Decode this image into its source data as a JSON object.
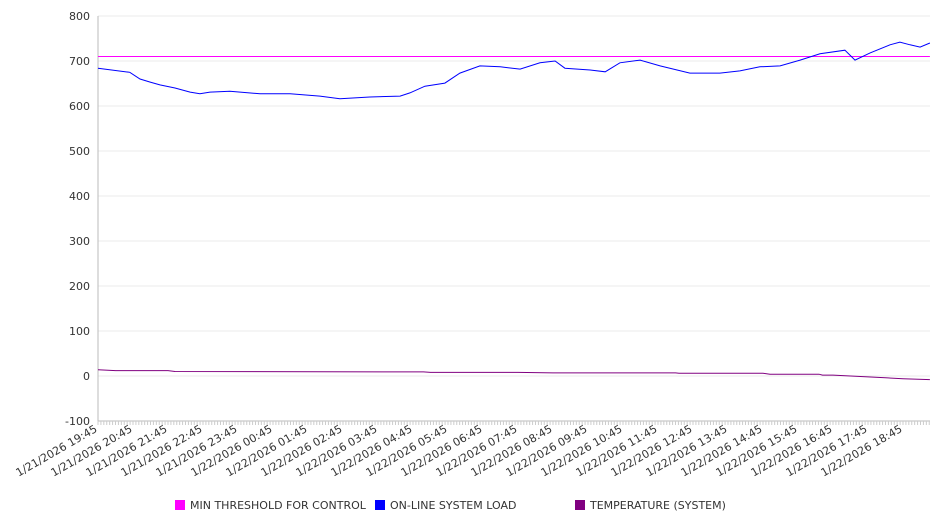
{
  "chart_data": {
    "type": "line",
    "title": "",
    "xlabel": "",
    "ylabel": "",
    "ylim": [
      -100,
      800
    ],
    "yticks": [
      800,
      700,
      600,
      500,
      400,
      300,
      200,
      100,
      0,
      -100
    ],
    "x_unit": "hours since 1/21/2026 19:45",
    "xlim": [
      0,
      23.77
    ],
    "xtick_labels": [
      "1/21/2026 19:45",
      "1/21/2026 20:45",
      "1/21/2026 21:45",
      "1/21/2026 22:45",
      "1/21/2026 23:45",
      "1/22/2026 00:45",
      "1/22/2026 01:45",
      "1/22/2026 02:45",
      "1/22/2026 03:45",
      "1/22/2026 04:45",
      "1/22/2026 05:45",
      "1/22/2026 06:45",
      "1/22/2026 07:45",
      "1/22/2026 08:45",
      "1/22/2026 09:45",
      "1/22/2026 10:45",
      "1/22/2026 11:45",
      "1/22/2026 12:45",
      "1/22/2026 13:45",
      "1/22/2026 14:45",
      "1/22/2026 15:45",
      "1/22/2026 16:45",
      "1/22/2026 17:45",
      "1/22/2026 18:45"
    ],
    "grid": true,
    "legend_position": "bottom",
    "series": [
      {
        "name": "MIN THRESHOLD FOR CONTROL",
        "color": "#ff00ff",
        "points": [
          [
            0,
            710
          ],
          [
            23.77,
            710
          ]
        ]
      },
      {
        "name": "ON-LINE SYSTEM LOAD",
        "color": "#0000ff",
        "points": [
          [
            0,
            684
          ],
          [
            0.91,
            675
          ],
          [
            1.2,
            660
          ],
          [
            1.49,
            653
          ],
          [
            1.77,
            647
          ],
          [
            2.2,
            640
          ],
          [
            2.63,
            631
          ],
          [
            2.91,
            627
          ],
          [
            3.2,
            631
          ],
          [
            3.77,
            633
          ],
          [
            4.63,
            627
          ],
          [
            5.49,
            627
          ],
          [
            6.34,
            622
          ],
          [
            6.91,
            616
          ],
          [
            7.77,
            620
          ],
          [
            8.63,
            622
          ],
          [
            8.91,
            629
          ],
          [
            9.34,
            644
          ],
          [
            9.91,
            651
          ],
          [
            10.34,
            673
          ],
          [
            10.91,
            689
          ],
          [
            11.49,
            687
          ],
          [
            12.06,
            682
          ],
          [
            12.63,
            696
          ],
          [
            13.06,
            700
          ],
          [
            13.34,
            684
          ],
          [
            14.06,
            680
          ],
          [
            14.49,
            676
          ],
          [
            14.91,
            696
          ],
          [
            15.49,
            702
          ],
          [
            16.06,
            689
          ],
          [
            16.91,
            673
          ],
          [
            17.77,
            673
          ],
          [
            18.34,
            678
          ],
          [
            18.91,
            687
          ],
          [
            19.49,
            689
          ],
          [
            20.06,
            702
          ],
          [
            20.63,
            716
          ],
          [
            21.34,
            724
          ],
          [
            21.63,
            702
          ],
          [
            22.06,
            718
          ],
          [
            22.63,
            736
          ],
          [
            22.91,
            742
          ],
          [
            23.2,
            736
          ],
          [
            23.49,
            731
          ],
          [
            23.77,
            740
          ]
        ]
      },
      {
        "name": "TEMPERATURE (SYSTEM)",
        "color": "#800080",
        "points": [
          [
            0,
            14
          ],
          [
            0.5,
            12
          ],
          [
            2,
            12
          ],
          [
            2.2,
            10
          ],
          [
            9.3,
            9
          ],
          [
            9.5,
            8
          ],
          [
            12,
            8
          ],
          [
            13,
            7
          ],
          [
            16.5,
            7
          ],
          [
            16.6,
            6
          ],
          [
            19,
            6
          ],
          [
            19.2,
            4
          ],
          [
            20.6,
            4
          ],
          [
            20.7,
            2
          ],
          [
            21,
            2
          ],
          [
            21.5,
            0
          ],
          [
            22,
            -2
          ],
          [
            22.5,
            -4
          ],
          [
            23,
            -6
          ],
          [
            23.77,
            -8
          ]
        ]
      }
    ]
  }
}
